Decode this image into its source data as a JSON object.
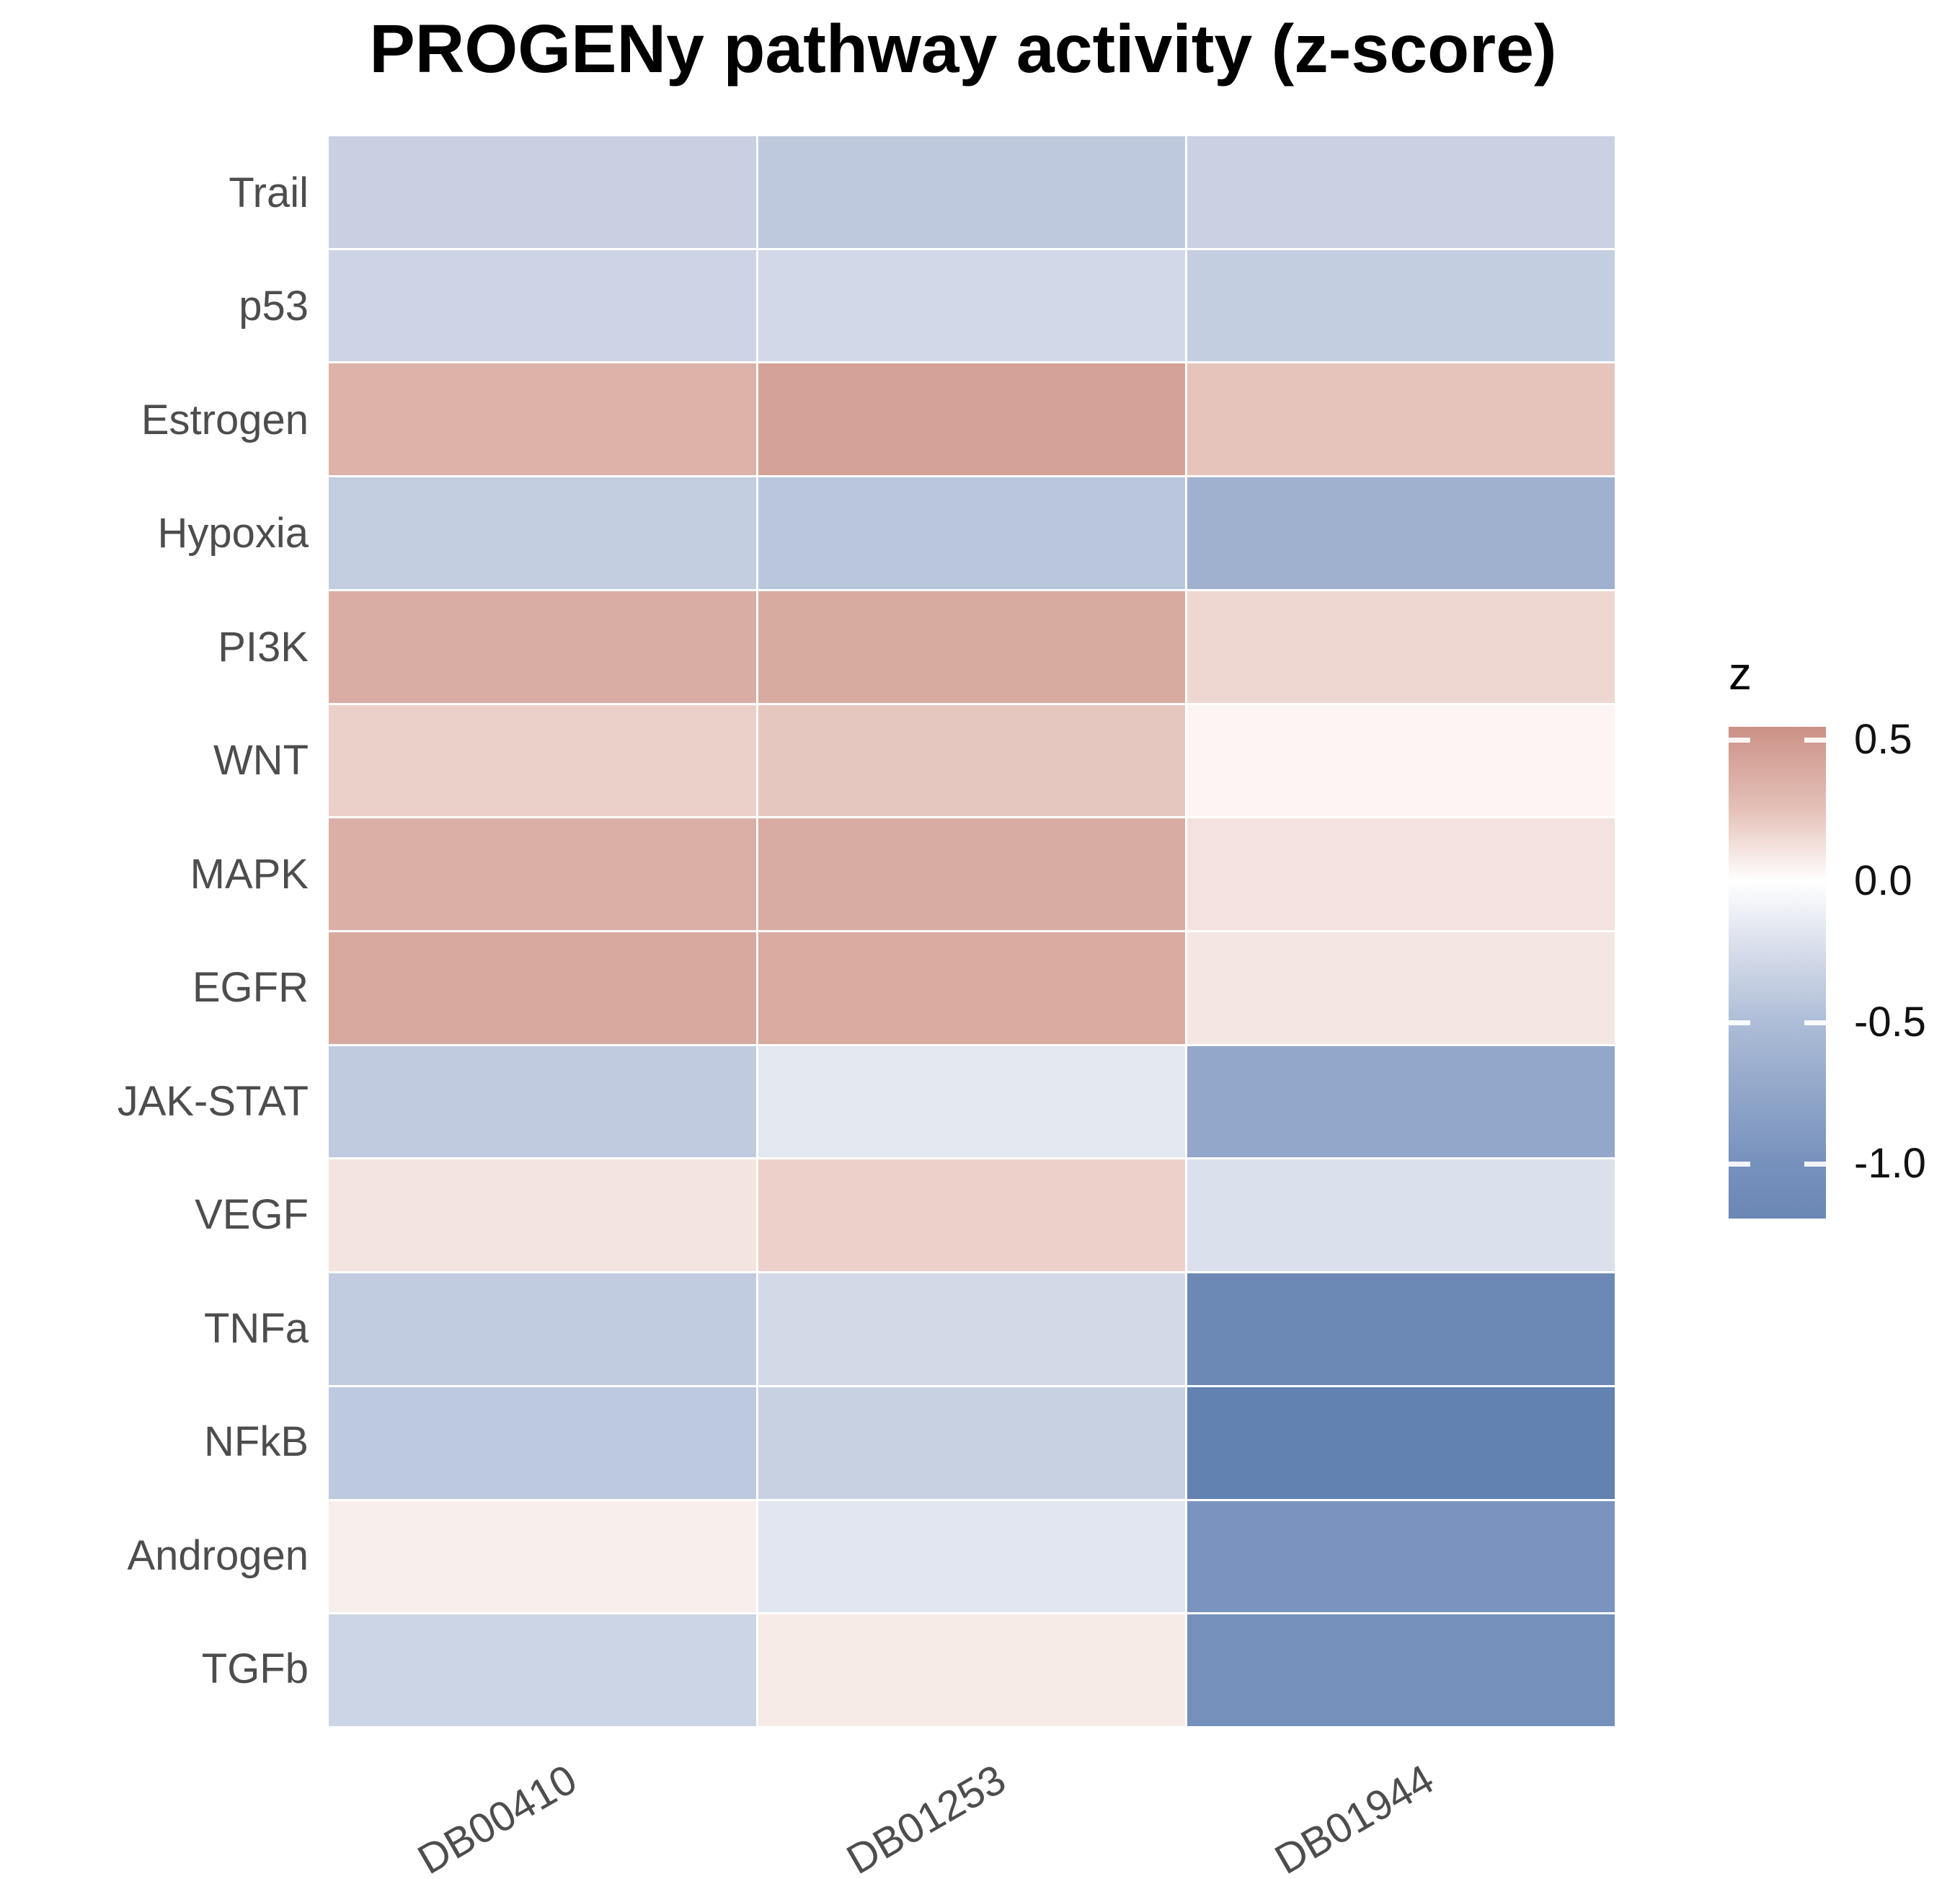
{
  "title": "PROGENy pathway activity (z-score)",
  "chart_data": {
    "type": "heatmap",
    "title": "PROGENy pathway activity (z-score)",
    "xlabel": "",
    "ylabel": "",
    "x_categories": [
      "DB00410",
      "DB01253",
      "DB01944"
    ],
    "y_categories": [
      "Trail",
      "p53",
      "Estrogen",
      "Hypoxia",
      "PI3K",
      "WNT",
      "MAPK",
      "EGFR",
      "JAK-STAT",
      "VEGF",
      "TNFa",
      "NFkB",
      "Androgen",
      "TGFb"
    ],
    "z_values": [
      [
        -0.31,
        -0.38,
        -0.33
      ],
      [
        -0.28,
        -0.25,
        -0.34
      ],
      [
        0.37,
        0.45,
        0.27
      ],
      [
        -0.36,
        -0.42,
        -0.6
      ],
      [
        0.4,
        0.41,
        0.17
      ],
      [
        0.22,
        0.27,
        0.03
      ],
      [
        0.39,
        0.4,
        0.12
      ],
      [
        0.42,
        0.41,
        0.1
      ],
      [
        -0.37,
        -0.13,
        -0.72
      ],
      [
        0.11,
        0.2,
        -0.2
      ],
      [
        -0.36,
        -0.23,
        -1.1
      ],
      [
        -0.39,
        -0.3,
        -1.19
      ],
      [
        0.05,
        -0.15,
        -0.9
      ],
      [
        -0.28,
        0.07,
        -1.0
      ]
    ],
    "cell_colors": [
      [
        "#c8d0e2",
        "#bfc9dd",
        "#c9d1e3"
      ],
      [
        "#cdd4e5",
        "#d2d8e7",
        "#c4cee1"
      ],
      [
        "#ddb2a8",
        "#d5a297",
        "#e6c4bb"
      ],
      [
        "#c2cde0",
        "#bac6dc",
        "#a0b1d0"
      ],
      [
        "#d9ada4",
        "#d8aba1",
        "#eed7d1"
      ],
      [
        "#ebd0c9",
        "#e6c7c0",
        "#fcf5f3"
      ],
      [
        "#d9afa6",
        "#d8aca2",
        "#f3e2dd"
      ],
      [
        "#d8a99f",
        "#d9aba1",
        "#f4e6e1"
      ],
      [
        "#c0cbdf",
        "#e3e7ef",
        "#92a7c9"
      ],
      [
        "#f4e4e0",
        "#ecd0c9",
        "#dae0ec"
      ],
      [
        "#c1cce0",
        "#d3d9e7",
        "#6c89b6"
      ],
      [
        "#bdc9de",
        "#c8d1e1",
        "#6282b2"
      ],
      [
        "#f8eeeb",
        "#e2e6f0",
        "#7b94bf"
      ],
      [
        "#ccd5e5",
        "#f7ebe7",
        "#7690bc"
      ]
    ],
    "legend": {
      "title": "z",
      "position": "right",
      "tick_labels": [
        "0.5",
        "0.0",
        "-0.5",
        "-1.0"
      ],
      "tick_values": [
        0.5,
        0.0,
        -0.5,
        -1.0
      ],
      "range": [
        -1.19,
        0.55
      ],
      "gradient_stops": [
        {
          "pos": 0.0,
          "color": "#cb9186"
        },
        {
          "pos": 0.17,
          "color": "#e5c1b8"
        },
        {
          "pos": 0.314,
          "color": "#ffffff"
        },
        {
          "pos": 0.46,
          "color": "#d5dbe9"
        },
        {
          "pos": 0.601,
          "color": "#adbdd7"
        },
        {
          "pos": 0.745,
          "color": "#91a6c9"
        },
        {
          "pos": 0.889,
          "color": "#7791bd"
        },
        {
          "pos": 1.0,
          "color": "#6b87b4"
        }
      ]
    },
    "colorscale": {
      "positive_max": "#cb9186",
      "zero": "#ffffff",
      "negative_min": "#6b87b4"
    },
    "grid": false,
    "background": "#ffffff",
    "axis_text_color": "#4d4d4d",
    "title_color": "#000000"
  }
}
